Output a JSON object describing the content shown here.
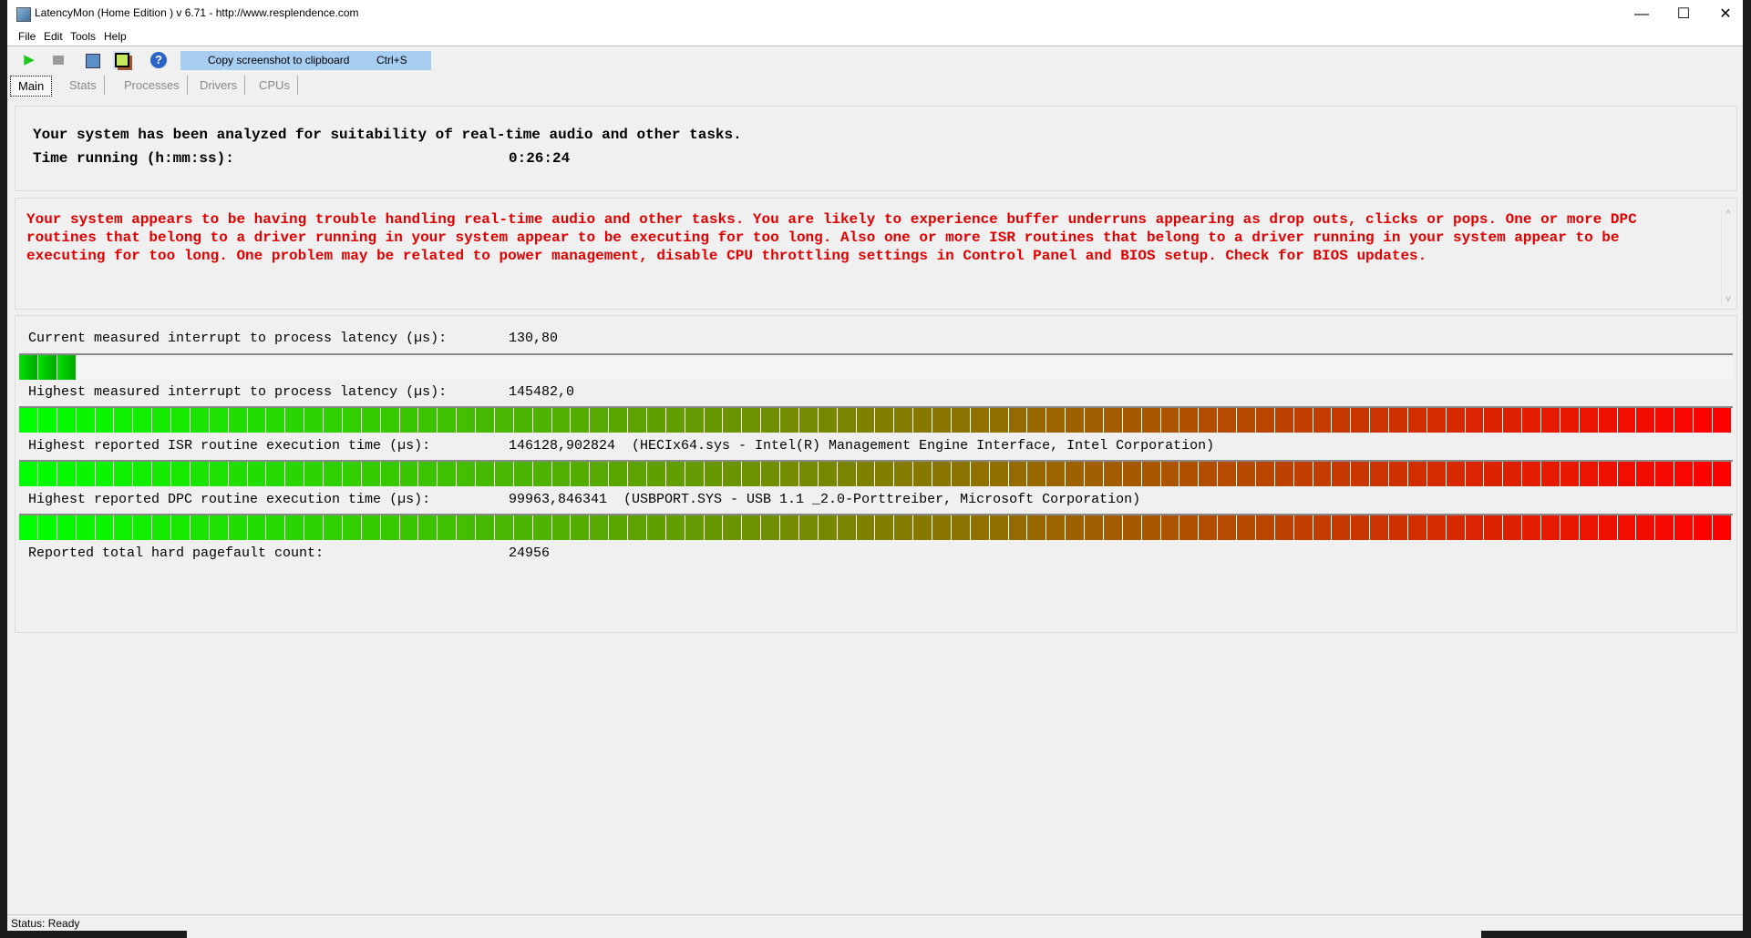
{
  "window": {
    "title": "LatencyMon  (Home Edition )  v 6.71 - http://www.resplendence.com",
    "minimize": "—",
    "maximize": "☐",
    "close": "✕"
  },
  "menu": [
    "File",
    "Edit",
    "Tools",
    "Help"
  ],
  "toolbar": {
    "start_icon": "play-icon",
    "stop_icon": "stop-icon",
    "report_icon": "report-icon",
    "screenshot_icon": "screenshot-icon",
    "help_icon": "help-icon",
    "tooltip_label": "Copy screenshot to clipboard",
    "tooltip_shortcut": "Ctrl+S"
  },
  "tabs": [
    "Main",
    "Stats",
    "Processes",
    "Drivers",
    "CPUs"
  ],
  "summary": {
    "line1": "Your system has been analyzed for suitability of real-time audio and other tasks.",
    "time_label": "Time running (h:mm:ss):",
    "time_value": "0:26:24"
  },
  "warning": "Your system appears to be having trouble handling real-time audio and other tasks. You are likely to experience buffer underruns appearing as drop outs, clicks or pops. One or more DPC routines that belong to a driver running in your system appear to be executing for too long. Also one or more ISR routines that belong to a driver running in your system appear to be executing for too long. One problem may be related to power management, disable CPU throttling settings in Control Panel and BIOS setup. Check for BIOS updates.",
  "metrics": [
    {
      "label": "Current measured interrupt to process latency (µs):",
      "value": "130,80",
      "bar_fill": 0.034
    },
    {
      "label": "Highest measured interrupt to process latency (µs):",
      "value": "145482,0",
      "bar_fill": 1.0
    },
    {
      "label": "Highest reported ISR routine execution time (µs):",
      "value": "146128,902824  (HECIx64.sys - Intel(R) Management Engine Interface, Intel Corporation)",
      "bar_fill": 1.0
    },
    {
      "label": "Highest reported DPC routine execution time (µs):",
      "value": "99963,846341  (USBPORT.SYS - USB 1.1 _2.0-Porttreiber, Microsoft Corporation)",
      "bar_fill": 1.0
    },
    {
      "label": "Reported total hard pagefault count:",
      "value": "24956"
    }
  ],
  "status": "Status: Ready",
  "colors": {
    "bar_start": "#00ff00",
    "bar_end": "#ff0000",
    "warning": "#e00000"
  }
}
